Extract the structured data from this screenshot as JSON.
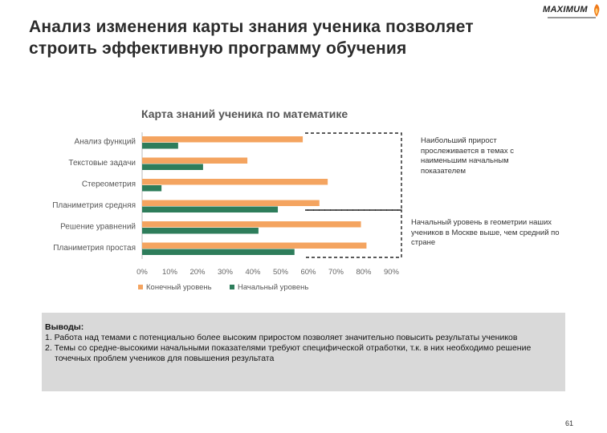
{
  "slide": {
    "title": "Анализ изменения карты знания ученика позволяет строить эффективную программу обучения",
    "page_number": "61",
    "logo_text": "MAXIMUM"
  },
  "callouts": {
    "top": "Наибольший прирост прослеживается в темах с наименьшим начальным показателем",
    "bottom": "Начальный уровень в геометрии наших учеников в Москве выше, чем средний по стране"
  },
  "conclusions": {
    "heading": "Выводы:",
    "items": [
      "1. Работа над темами с потенциально более высоким приростом позволяет значительно повысить результаты учеников",
      "2. Темы со средне-высокими начальными показателями требуют специфической отработки, т.к. в них необходимо решение точечных проблем учеников для повышения результата"
    ]
  },
  "chart_data": {
    "type": "bar",
    "orientation": "horizontal",
    "title": "Карта знаний ученика по математике",
    "categories": [
      "Анализ функций",
      "Текстовые задачи",
      "Стереометрия",
      "Планиметрия средняя",
      "Решение уравнений",
      "Планиметрия простая"
    ],
    "series": [
      {
        "name": "Конечный уровень",
        "color": "#f4a460",
        "values": [
          58,
          38,
          67,
          64,
          79,
          81
        ]
      },
      {
        "name": "Начальный уровень",
        "color": "#2e7d5b",
        "values": [
          13,
          22,
          7,
          49,
          42,
          55
        ]
      }
    ],
    "xlim": [
      0,
      90
    ],
    "xticks": [
      "0%",
      "10%",
      "20%",
      "30%",
      "40%",
      "50%",
      "60%",
      "70%",
      "80%",
      "90%"
    ],
    "legend": "bottom",
    "grid": false
  }
}
